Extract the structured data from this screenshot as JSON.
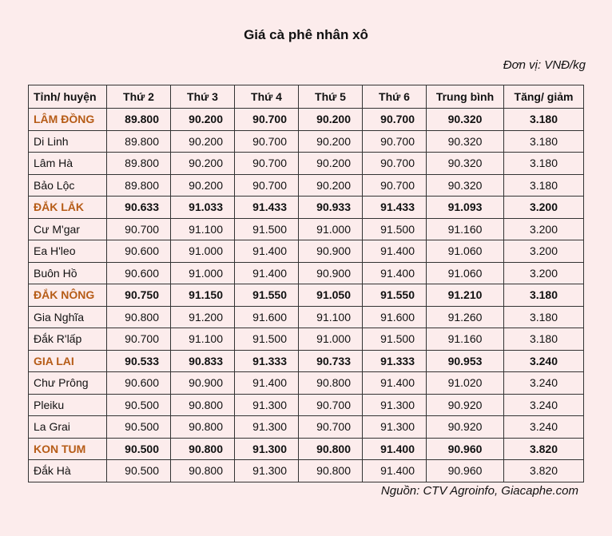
{
  "title": "Giá cà phê nhân xô",
  "unit": "Đơn vị: VNĐ/kg",
  "source": "Nguồn: CTV Agroinfo, Giacaphe.com",
  "colors": {
    "background": "#fcecec",
    "province_name": "#b65c17",
    "border": "#333333"
  },
  "table": {
    "headers": [
      "Tỉnh/ huyện",
      "Thứ 2",
      "Thứ 3",
      "Thứ 4",
      "Thứ 5",
      "Thứ 6",
      "Trung bình",
      "Tăng/ giảm"
    ],
    "rows": [
      {
        "province": true,
        "cells": [
          "LÂM ĐỒNG",
          "89.800",
          "90.200",
          "90.700",
          "90.200",
          "90.700",
          "90.320",
          "3.180"
        ]
      },
      {
        "province": false,
        "cells": [
          "Di Linh",
          "89.800",
          "90.200",
          "90.700",
          "90.200",
          "90.700",
          "90.320",
          "3.180"
        ]
      },
      {
        "province": false,
        "cells": [
          "Lâm Hà",
          "89.800",
          "90.200",
          "90.700",
          "90.200",
          "90.700",
          "90.320",
          "3.180"
        ]
      },
      {
        "province": false,
        "cells": [
          "Bảo Lộc",
          "89.800",
          "90.200",
          "90.700",
          "90.200",
          "90.700",
          "90.320",
          "3.180"
        ]
      },
      {
        "province": true,
        "cells": [
          "ĐẮK LẮK",
          "90.633",
          "91.033",
          "91.433",
          "90.933",
          "91.433",
          "91.093",
          "3.200"
        ]
      },
      {
        "province": false,
        "cells": [
          "Cư M'gar",
          "90.700",
          "91.100",
          "91.500",
          "91.000",
          "91.500",
          "91.160",
          "3.200"
        ]
      },
      {
        "province": false,
        "cells": [
          "Ea H'leo",
          "90.600",
          "91.000",
          "91.400",
          "90.900",
          "91.400",
          "91.060",
          "3.200"
        ]
      },
      {
        "province": false,
        "cells": [
          "Buôn Hồ",
          "90.600",
          "91.000",
          "91.400",
          "90.900",
          "91.400",
          "91.060",
          "3.200"
        ]
      },
      {
        "province": true,
        "cells": [
          "ĐẮK NÔNG",
          "90.750",
          "91.150",
          "91.550",
          "91.050",
          "91.550",
          "91.210",
          "3.180"
        ]
      },
      {
        "province": false,
        "cells": [
          "Gia Nghĩa",
          "90.800",
          "91.200",
          "91.600",
          "91.100",
          "91.600",
          "91.260",
          "3.180"
        ]
      },
      {
        "province": false,
        "cells": [
          "Đắk R'lấp",
          "90.700",
          "91.100",
          "91.500",
          "91.000",
          "91.500",
          "91.160",
          "3.180"
        ]
      },
      {
        "province": true,
        "cells": [
          "GIA LAI",
          "90.533",
          "90.833",
          "91.333",
          "90.733",
          "91.333",
          "90.953",
          "3.240"
        ]
      },
      {
        "province": false,
        "cells": [
          "Chư Prông",
          "90.600",
          "90.900",
          "91.400",
          "90.800",
          "91.400",
          "91.020",
          "3.240"
        ]
      },
      {
        "province": false,
        "cells": [
          "Pleiku",
          "90.500",
          "90.800",
          "91.300",
          "90.700",
          "91.300",
          "90.920",
          "3.240"
        ]
      },
      {
        "province": false,
        "cells": [
          "La Grai",
          "90.500",
          "90.800",
          "91.300",
          "90.700",
          "91.300",
          "90.920",
          "3.240"
        ]
      },
      {
        "province": true,
        "cells": [
          "KON TUM",
          "90.500",
          "90.800",
          "91.300",
          "90.800",
          "91.400",
          "90.960",
          "3.820"
        ]
      },
      {
        "province": false,
        "cells": [
          "Đắk Hà",
          "90.500",
          "90.800",
          "91.300",
          "90.800",
          "91.400",
          "90.960",
          "3.820"
        ]
      }
    ]
  }
}
